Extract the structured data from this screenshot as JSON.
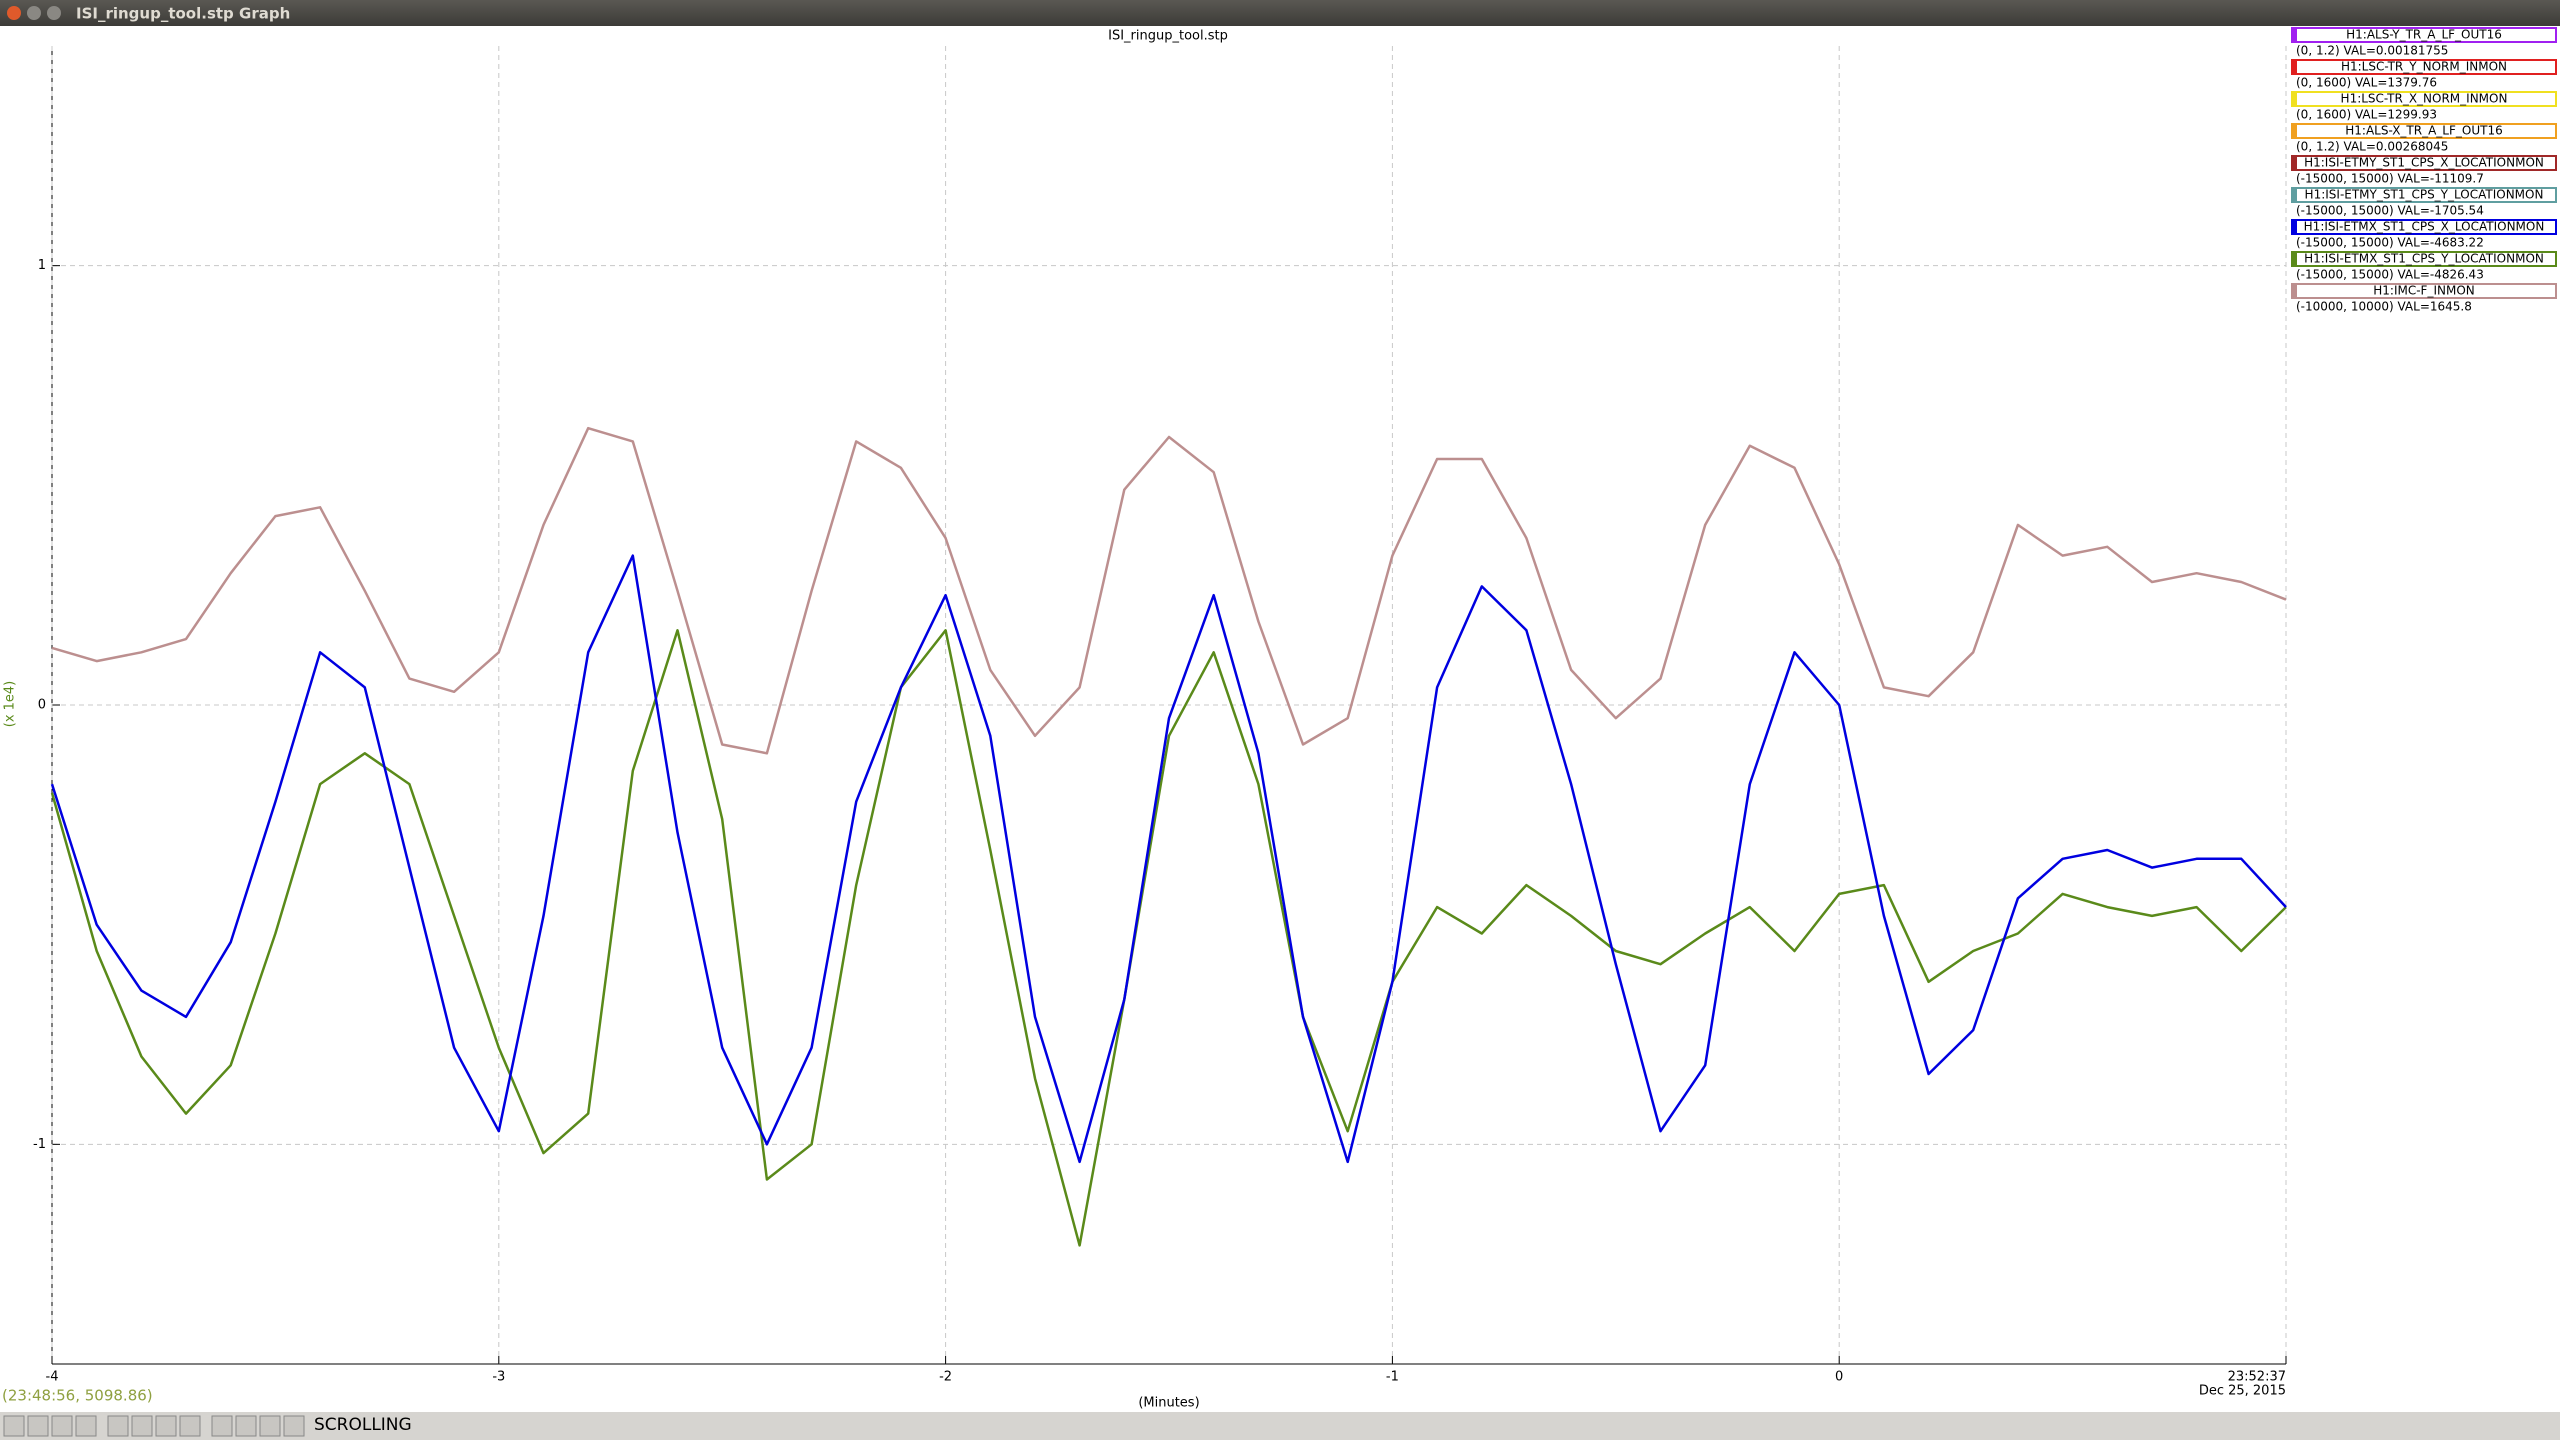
{
  "window": {
    "title": "ISI_ringup_tool.stp Graph"
  },
  "chart_data": {
    "type": "line",
    "title": "ISI_ringup_tool.stp",
    "xlabel": "(Minutes)",
    "ylabel": "(x 1e4)",
    "x": [
      -4,
      -3.9,
      -3.8,
      -3.7,
      -3.6,
      -3.5,
      -3.4,
      -3.3,
      -3.2,
      -3.1,
      -3,
      -2.9,
      -2.8,
      -2.7,
      -2.6,
      -2.5,
      -2.4,
      -2.3,
      -2.2,
      -2.1,
      -2,
      -1.9,
      -1.8,
      -1.7,
      -1.6,
      -1.5,
      -1.4,
      -1.3,
      -1.2,
      -1.1,
      -1,
      -0.9,
      -0.8,
      -0.7,
      -0.6,
      -0.5,
      -0.4,
      -0.3,
      -0.2,
      -0.1,
      0,
      0.1,
      0.2,
      0.3,
      0.4,
      0.5,
      0.6,
      0.7,
      0.8,
      0.9,
      1
    ],
    "xlim": [
      -4,
      1
    ],
    "xticks": [
      -4,
      -3,
      -2,
      -1,
      0,
      {
        "value": 1,
        "label": "23:52:37"
      }
    ],
    "x_end_date": "Dec 25, 2015",
    "ylim": [
      -1.5,
      1.5
    ],
    "yticks": [
      -1,
      0,
      1
    ],
    "grid": true,
    "series": [
      {
        "name": "H1:ALS-Y_TR_A_LF_OUT16",
        "range": "(0, 1.2) VAL=0.00181755",
        "color": "#a020f0"
      },
      {
        "name": "H1:LSC-TR_Y_NORM_INMON",
        "range": "(0, 1600) VAL=1379.76",
        "color": "#e02020"
      },
      {
        "name": "H1:LSC-TR_X_NORM_INMON",
        "range": "(0, 1600) VAL=1299.93",
        "color": "#f0e020"
      },
      {
        "name": "H1:ALS-X_TR_A_LF_OUT16",
        "range": "(0, 1.2) VAL=0.00268045",
        "color": "#f0a020"
      },
      {
        "name": "H1:ISI-ETMY_ST1_CPS_X_LOCATIONMON",
        "range": "(-15000, 15000) VAL=-11109.7",
        "color": "#a02828"
      },
      {
        "name": "H1:ISI-ETMY_ST1_CPS_Y_LOCATIONMON",
        "range": "(-15000, 15000) VAL=-1705.54",
        "color": "#5f9ea0"
      },
      {
        "name": "H1:ISI-ETMX_ST1_CPS_X_LOCATIONMON",
        "range": "(-15000, 15000) VAL=-4683.22",
        "color": "#0000e0",
        "values": [
          -0.18,
          -0.5,
          -0.65,
          -0.71,
          -0.54,
          -0.22,
          0.12,
          0.04,
          -0.37,
          -0.78,
          -0.97,
          -0.48,
          0.12,
          0.34,
          -0.29,
          -0.78,
          -1,
          -0.78,
          -0.22,
          0.04,
          0.25,
          -0.07,
          -0.71,
          -1.04,
          -0.67,
          -0.03,
          0.25,
          -0.11,
          -0.71,
          -1.04,
          -0.63,
          0.04,
          0.27,
          0.17,
          -0.18,
          -0.59,
          -0.97,
          -0.82,
          -0.18,
          0.12,
          0,
          -0.48,
          -0.84,
          -0.74,
          -0.44,
          -0.35,
          -0.33,
          -0.37,
          -0.35,
          -0.35,
          -0.46
        ]
      },
      {
        "name": "H1:ISI-ETMX_ST1_CPS_Y_LOCATIONMON",
        "range": "(-15000, 15000) VAL=-4826.43",
        "color": "#5a8a1a",
        "values": [
          -0.2,
          -0.56,
          -0.8,
          -0.93,
          -0.82,
          -0.52,
          -0.18,
          -0.11,
          -0.18,
          -0.48,
          -0.78,
          -1.02,
          -0.93,
          -0.15,
          0.17,
          -0.26,
          -1.08,
          -1,
          -0.41,
          0.04,
          0.17,
          -0.33,
          -0.85,
          -1.23,
          -0.67,
          -0.07,
          0.12,
          -0.18,
          -0.71,
          -0.97,
          -0.63,
          -0.46,
          -0.52,
          -0.41,
          -0.48,
          -0.56,
          -0.59,
          -0.52,
          -0.46,
          -0.56,
          -0.43,
          -0.41,
          -0.63,
          -0.56,
          -0.52,
          -0.43,
          -0.46,
          -0.48,
          -0.46,
          -0.56,
          -0.46
        ]
      },
      {
        "name": "H1:IMC-F_INMON",
        "range": "(-10000, 10000) VAL=1645.8",
        "color": "#bc8f8f",
        "values": [
          0.13,
          0.1,
          0.12,
          0.15,
          0.3,
          0.43,
          0.45,
          0.26,
          0.06,
          0.03,
          0.12,
          0.41,
          0.63,
          0.6,
          0.26,
          -0.09,
          -0.11,
          0.26,
          0.6,
          0.54,
          0.38,
          0.08,
          -0.07,
          0.04,
          0.49,
          0.61,
          0.53,
          0.19,
          -0.09,
          -0.03,
          0.34,
          0.56,
          0.56,
          0.38,
          0.08,
          -0.03,
          0.06,
          0.41,
          0.59,
          0.54,
          0.32,
          0.04,
          0.02,
          0.12,
          0.41,
          0.34,
          0.36,
          0.28,
          0.3,
          0.28,
          0.24
        ]
      }
    ]
  },
  "status": {
    "cursor": "(23:48:56, 5098.86)",
    "mode": "SCROLLING"
  }
}
